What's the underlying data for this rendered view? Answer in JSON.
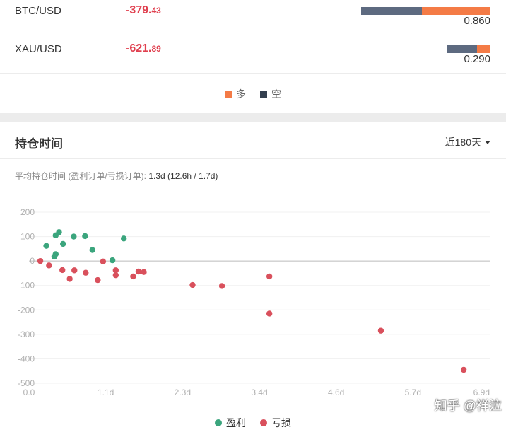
{
  "rows": [
    {
      "symbol": "BTC/USD",
      "pnl_main": "-379.",
      "pnl_dec": "43",
      "ratio": "0.860",
      "short_frac": 0.474,
      "long_frac": 0.526
    },
    {
      "symbol": "XAU/USD",
      "pnl_main": "-621.",
      "pnl_dec": "89",
      "ratio": "0.290",
      "short_frac": 0.7,
      "long_frac": 0.3
    }
  ],
  "ratio_legend": {
    "long_label": "多",
    "short_label": "空"
  },
  "colors": {
    "long": "#f47b46",
    "short": "#5d6a80",
    "profit": "#3ba57d",
    "loss": "#d9505c"
  },
  "section": {
    "title": "持仓时间",
    "period": "近180天",
    "summary_label": "平均持仓时间 (盈利订单/亏损订单):",
    "summary_value": "1.3d (12.6h / 1.7d)"
  },
  "chart_data": {
    "type": "scatter",
    "x_ticks": [
      "0.0",
      "1.1d",
      "2.3d",
      "3.4d",
      "4.6d",
      "5.7d",
      "6.9d"
    ],
    "y_ticks": [
      "200",
      "100",
      "0",
      "-100",
      "-200",
      "-300",
      "-400",
      "-500"
    ],
    "xlim": [
      0,
      6.9
    ],
    "ylim": [
      -500,
      200
    ],
    "series": [
      {
        "name": "盈利",
        "points": [
          [
            0.26,
            62
          ],
          [
            0.4,
            105
          ],
          [
            0.45,
            118
          ],
          [
            0.51,
            70
          ],
          [
            0.4,
            28
          ],
          [
            0.38,
            18
          ],
          [
            0.67,
            100
          ],
          [
            0.84,
            102
          ],
          [
            0.95,
            45
          ],
          [
            1.25,
            3
          ],
          [
            1.42,
            92
          ]
        ]
      },
      {
        "name": "亏损",
        "points": [
          [
            0.17,
            0
          ],
          [
            0.3,
            -18
          ],
          [
            0.5,
            -37
          ],
          [
            0.61,
            -73
          ],
          [
            0.68,
            -38
          ],
          [
            0.85,
            -48
          ],
          [
            1.03,
            -78
          ],
          [
            1.11,
            -2
          ],
          [
            1.3,
            -38
          ],
          [
            1.3,
            -58
          ],
          [
            1.56,
            -63
          ],
          [
            1.64,
            -43
          ],
          [
            1.72,
            -45
          ],
          [
            2.45,
            -98
          ],
          [
            2.89,
            -102
          ],
          [
            3.6,
            -63
          ],
          [
            3.6,
            -215
          ],
          [
            5.27,
            -285
          ],
          [
            6.51,
            -445
          ]
        ]
      }
    ],
    "legend": {
      "profit_label": "盈利",
      "loss_label": "亏损"
    }
  },
  "watermark": "知乎 @祥泣"
}
